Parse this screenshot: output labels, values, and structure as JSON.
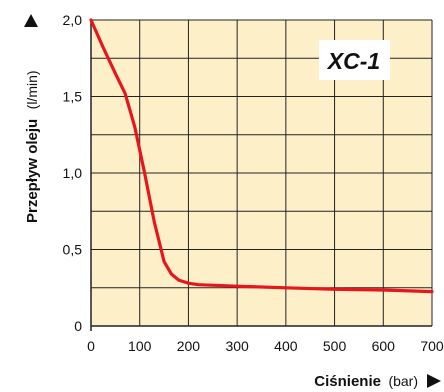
{
  "chart_data": {
    "type": "line",
    "model_label": "XC-1",
    "ylabel": {
      "main": "Przepływ oleju",
      "unit": "(l/min)"
    },
    "xlabel": {
      "main": "Ciśnienie",
      "unit": "(bar)"
    },
    "xlim": [
      0,
      700
    ],
    "ylim": [
      0,
      2.0
    ],
    "x_ticks": [
      0,
      100,
      200,
      300,
      400,
      500,
      600,
      700
    ],
    "x_tick_labels": [
      "0",
      "100",
      "200",
      "300",
      "400",
      "500",
      "600",
      "700"
    ],
    "y_ticks": [
      0,
      0.5,
      1.0,
      1.5,
      2.0
    ],
    "y_tick_labels": [
      "0",
      "0,5",
      "1,0",
      "1,5",
      "2,0"
    ],
    "grid": true,
    "colors": {
      "plot_bg": "#fdf0c8",
      "line": "#e8161c",
      "grid": "#222222",
      "arrow": "#111111"
    },
    "series": [
      {
        "x": [
          0,
          25,
          50,
          70,
          90,
          110,
          130,
          150,
          165,
          180,
          200,
          220,
          300,
          400,
          500,
          600,
          700
        ],
        "y": [
          2.0,
          1.82,
          1.65,
          1.52,
          1.3,
          1.0,
          0.68,
          0.42,
          0.34,
          0.3,
          0.28,
          0.27,
          0.26,
          0.25,
          0.24,
          0.235,
          0.225
        ]
      }
    ]
  }
}
